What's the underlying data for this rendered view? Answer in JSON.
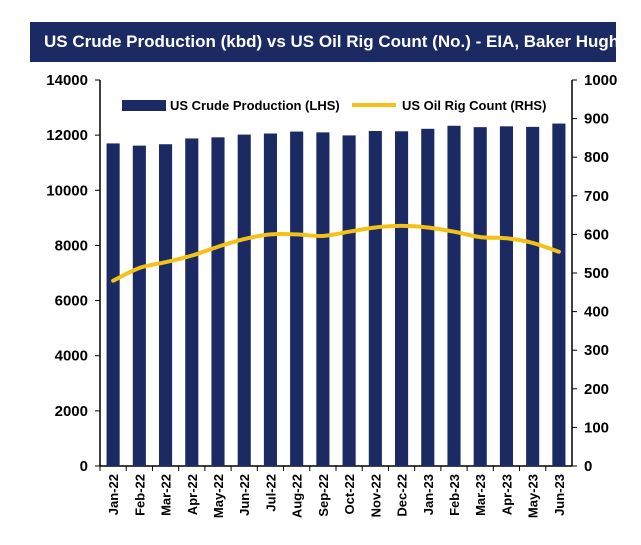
{
  "chart_data": {
    "type": "bar",
    "title": "US Crude Production (kbd) vs US Oil Rig Count (No.) - EIA, Baker Hughes",
    "categories": [
      "Jan-22",
      "Feb-22",
      "Mar-22",
      "Apr-22",
      "May-22",
      "Jun-22",
      "Jul-22",
      "Aug-22",
      "Sep-22",
      "Oct-22",
      "Nov-22",
      "Dec-22",
      "Jan-23",
      "Feb-23",
      "Mar-23",
      "Apr-23",
      "May-23",
      "Jun-23"
    ],
    "series": [
      {
        "name": "US Crude Production (LHS)",
        "type": "bar",
        "axis": "left",
        "color": "#1b2a63",
        "values": [
          11700,
          11620,
          11670,
          11880,
          11920,
          12020,
          12060,
          12130,
          12100,
          11990,
          12150,
          12140,
          12230,
          12340,
          12290,
          12320,
          12300,
          12420
        ]
      },
      {
        "name": "US Oil Rig Count (RHS)",
        "type": "line",
        "axis": "right",
        "color": "#f2c218",
        "values": [
          480,
          513,
          528,
          545,
          568,
          588,
          600,
          600,
          596,
          607,
          618,
          622,
          618,
          607,
          593,
          590,
          578,
          555
        ]
      }
    ],
    "ylim_left": [
      0,
      14000
    ],
    "yticks_left": [
      "0",
      "2000",
      "4000",
      "6000",
      "8000",
      "10000",
      "12000",
      "14000"
    ],
    "ylim_right": [
      0,
      1000
    ],
    "yticks_right": [
      "0",
      "100",
      "200",
      "300",
      "400",
      "500",
      "600",
      "700",
      "800",
      "900",
      "1000"
    ],
    "grid": false,
    "legend_position": "top"
  }
}
